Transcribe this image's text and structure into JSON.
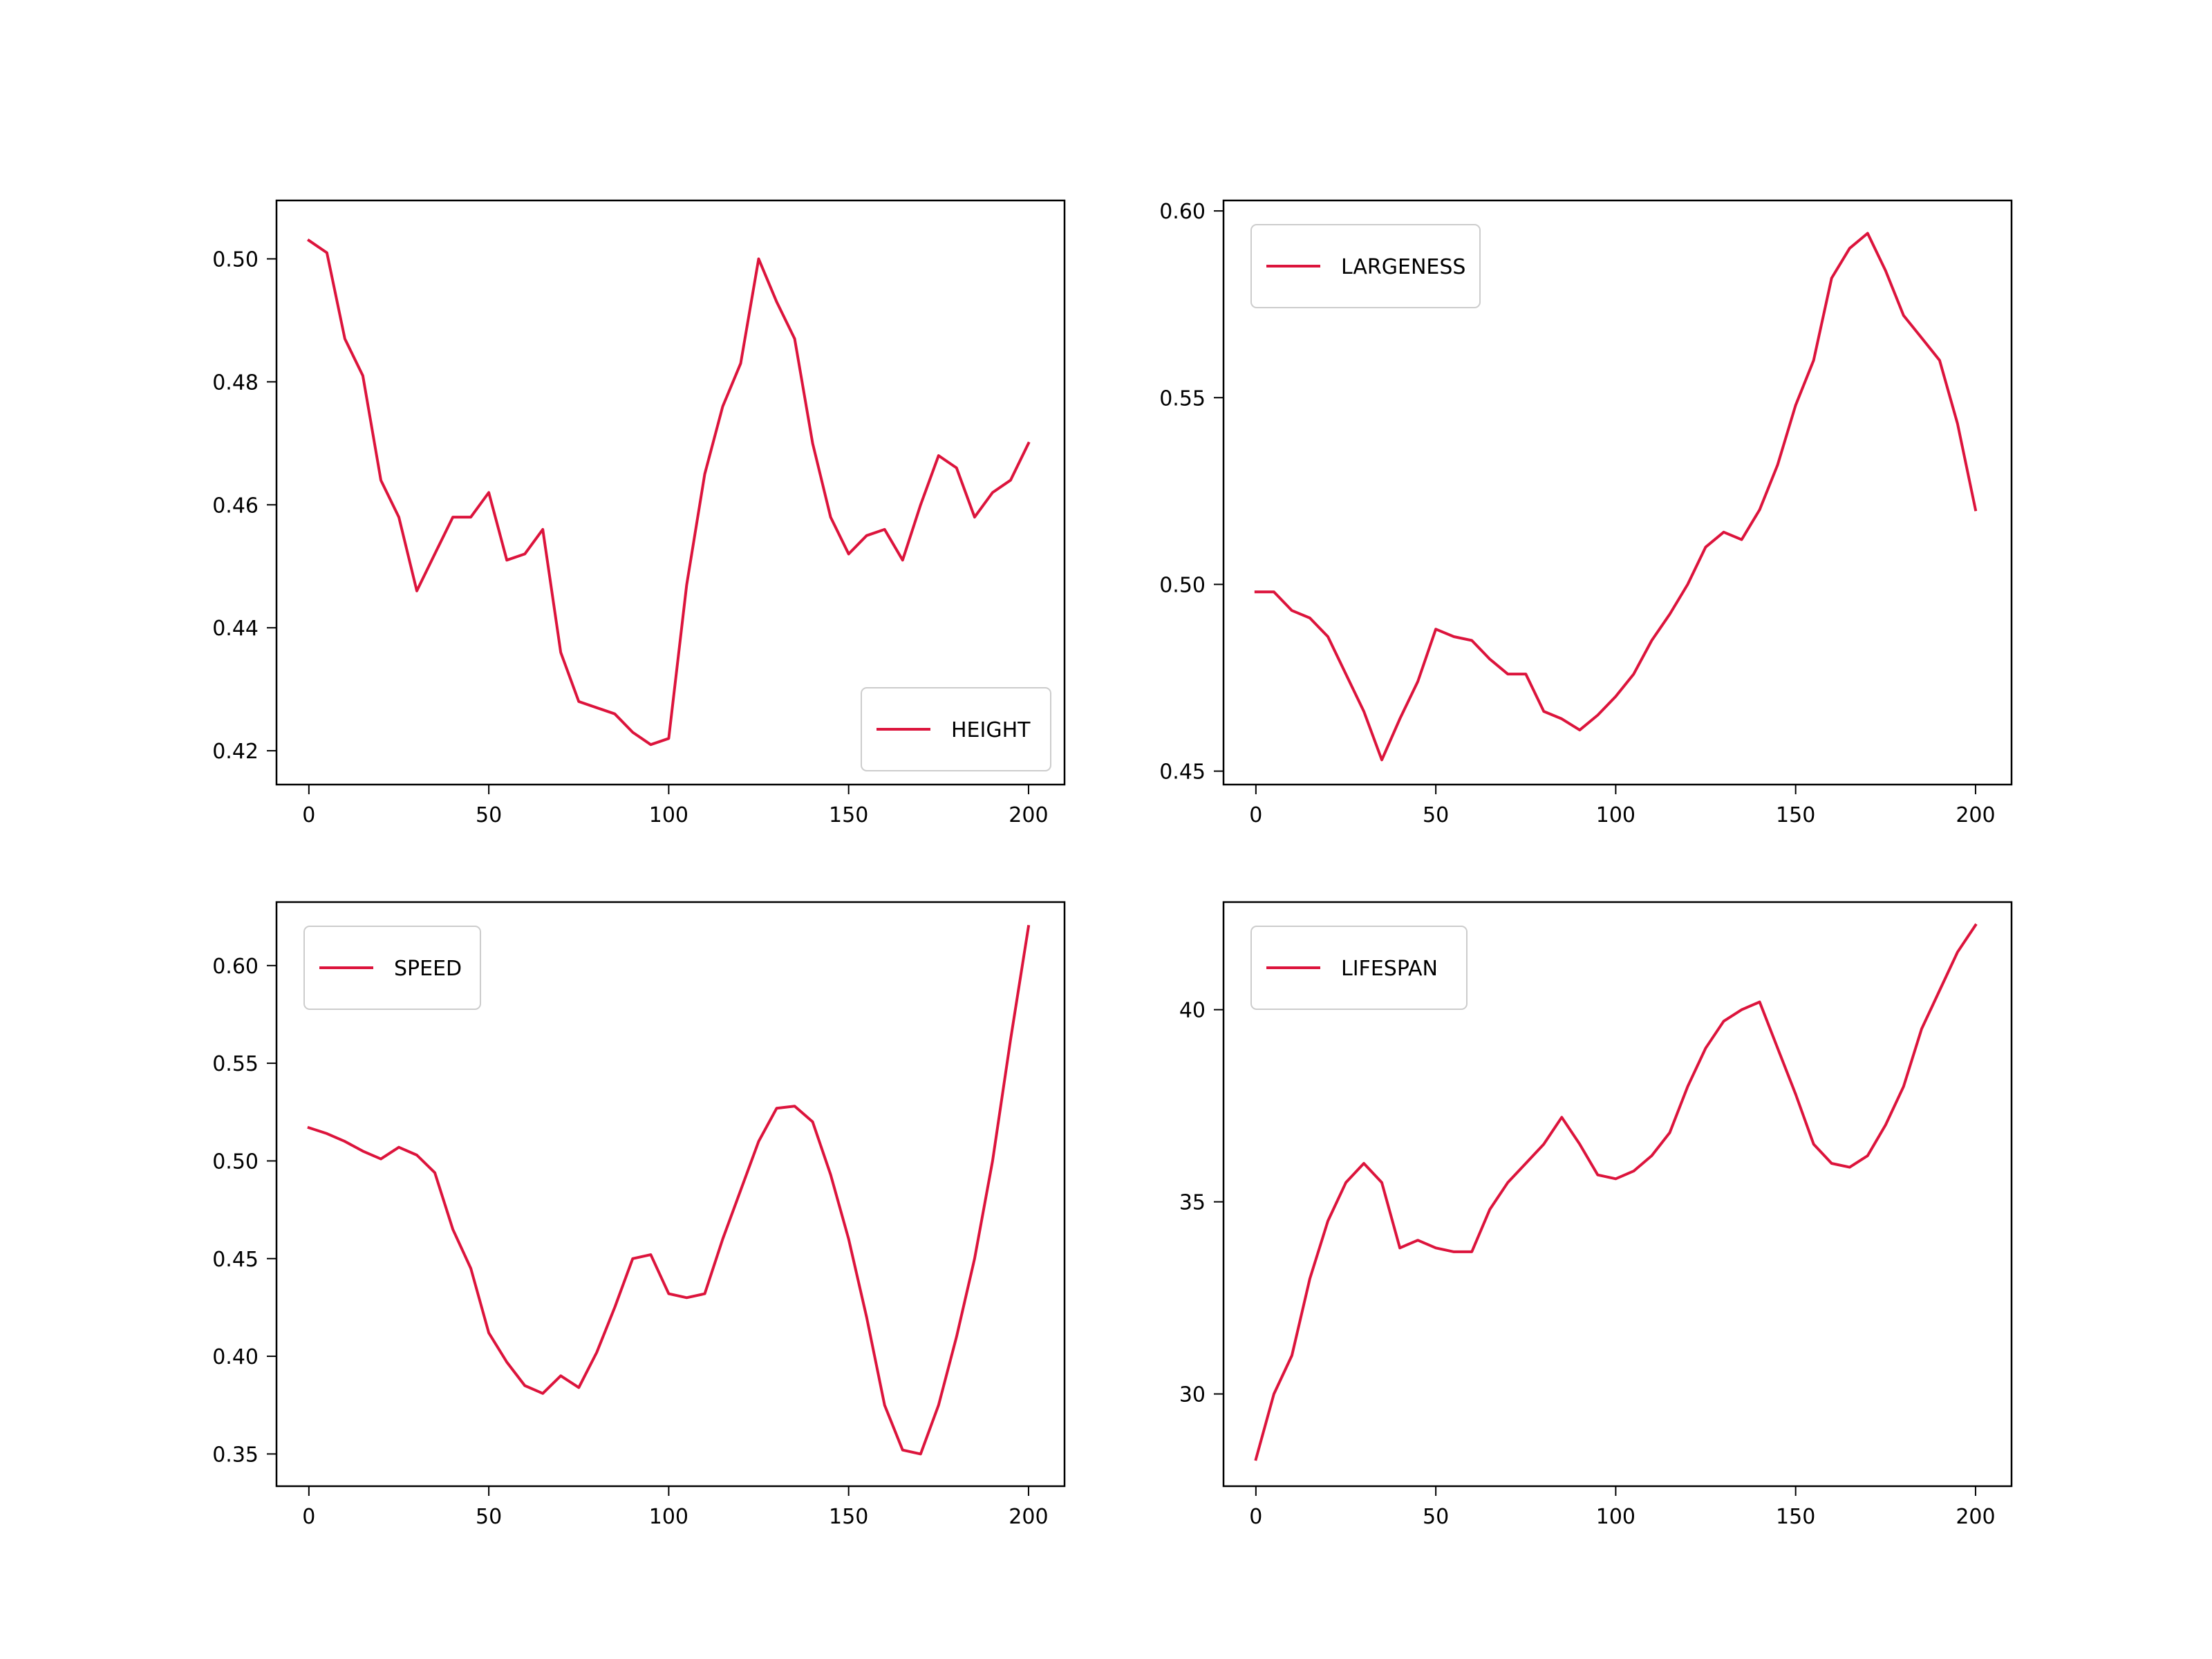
{
  "line_color": "#dc143c",
  "chart_data": [
    {
      "type": "line",
      "series": [
        {
          "name": "HEIGHT",
          "x": [
            0,
            5,
            10,
            15,
            20,
            25,
            30,
            35,
            40,
            45,
            50,
            55,
            60,
            65,
            70,
            75,
            80,
            85,
            90,
            95,
            100,
            105,
            110,
            115,
            120,
            125,
            130,
            135,
            140,
            145,
            150,
            155,
            160,
            165,
            170,
            175,
            180,
            185,
            190,
            195,
            200
          ],
          "y": [
            0.503,
            0.501,
            0.487,
            0.481,
            0.464,
            0.458,
            0.446,
            0.452,
            0.458,
            0.458,
            0.462,
            0.451,
            0.452,
            0.456,
            0.436,
            0.428,
            0.427,
            0.426,
            0.423,
            0.421,
            0.422,
            0.447,
            0.465,
            0.476,
            0.483,
            0.5,
            0.493,
            0.487,
            0.47,
            0.458,
            0.452,
            0.455,
            0.456,
            0.451,
            0.46,
            0.468,
            0.466,
            0.458,
            0.462,
            0.464,
            0.47
          ]
        }
      ],
      "xlim": [
        -9,
        210
      ],
      "ylim": [
        0.4145,
        0.5095
      ],
      "xticks": [
        0,
        50,
        100,
        150,
        200
      ],
      "yticks": [
        0.42,
        0.44,
        0.46,
        0.48,
        0.5
      ],
      "xtick_labels": [
        "0",
        "50",
        "100",
        "150",
        "200"
      ],
      "ytick_labels": [
        "0.42",
        "0.44",
        "0.46",
        "0.48",
        "0.50"
      ],
      "legend_position": "lower-right"
    },
    {
      "type": "line",
      "series": [
        {
          "name": "LARGENESS",
          "x": [
            0,
            5,
            10,
            15,
            20,
            25,
            30,
            35,
            40,
            45,
            50,
            55,
            60,
            65,
            70,
            75,
            80,
            85,
            90,
            95,
            100,
            105,
            110,
            115,
            120,
            125,
            130,
            135,
            140,
            145,
            150,
            155,
            160,
            165,
            170,
            175,
            180,
            185,
            190,
            195,
            200
          ],
          "y": [
            0.498,
            0.498,
            0.493,
            0.491,
            0.486,
            0.476,
            0.466,
            0.453,
            0.464,
            0.474,
            0.488,
            0.486,
            0.485,
            0.48,
            0.476,
            0.476,
            0.466,
            0.464,
            0.461,
            0.465,
            0.47,
            0.476,
            0.485,
            0.492,
            0.5,
            0.51,
            0.514,
            0.512,
            0.52,
            0.532,
            0.548,
            0.56,
            0.582,
            0.59,
            0.594,
            0.584,
            0.572,
            0.566,
            0.56,
            0.543,
            0.52
          ]
        }
      ],
      "xlim": [
        -9,
        210
      ],
      "ylim": [
        0.4464,
        0.6028
      ],
      "xticks": [
        0,
        50,
        100,
        150,
        200
      ],
      "yticks": [
        0.45,
        0.5,
        0.55,
        0.6
      ],
      "xtick_labels": [
        "0",
        "50",
        "100",
        "150",
        "200"
      ],
      "ytick_labels": [
        "0.45",
        "0.50",
        "0.55",
        "0.60"
      ],
      "legend_position": "upper-left"
    },
    {
      "type": "line",
      "series": [
        {
          "name": "SPEED",
          "x": [
            0,
            5,
            10,
            15,
            20,
            25,
            30,
            35,
            40,
            45,
            50,
            55,
            60,
            65,
            70,
            75,
            80,
            85,
            90,
            95,
            100,
            105,
            110,
            115,
            120,
            125,
            130,
            135,
            140,
            145,
            150,
            155,
            160,
            165,
            170,
            175,
            180,
            185,
            190,
            195,
            200
          ],
          "y": [
            0.517,
            0.514,
            0.51,
            0.505,
            0.501,
            0.507,
            0.503,
            0.494,
            0.465,
            0.445,
            0.412,
            0.397,
            0.385,
            0.381,
            0.39,
            0.384,
            0.402,
            0.425,
            0.45,
            0.452,
            0.432,
            0.43,
            0.432,
            0.46,
            0.485,
            0.51,
            0.527,
            0.528,
            0.52,
            0.493,
            0.46,
            0.42,
            0.375,
            0.352,
            0.35,
            0.375,
            0.41,
            0.45,
            0.5,
            0.562,
            0.62
          ]
        }
      ],
      "xlim": [
        -9,
        210
      ],
      "ylim": [
        0.3335,
        0.6325
      ],
      "xticks": [
        0,
        50,
        100,
        150,
        200
      ],
      "yticks": [
        0.35,
        0.4,
        0.45,
        0.5,
        0.55,
        0.6
      ],
      "xtick_labels": [
        "0",
        "50",
        "100",
        "150",
        "200"
      ],
      "ytick_labels": [
        "0.35",
        "0.40",
        "0.45",
        "0.50",
        "0.55",
        "0.60"
      ],
      "legend_position": "upper-left"
    },
    {
      "type": "line",
      "series": [
        {
          "name": "LIFESPAN",
          "x": [
            0,
            5,
            10,
            15,
            20,
            25,
            30,
            35,
            40,
            45,
            50,
            55,
            60,
            65,
            70,
            75,
            80,
            85,
            90,
            95,
            100,
            105,
            110,
            115,
            120,
            125,
            130,
            135,
            140,
            145,
            150,
            155,
            160,
            165,
            170,
            175,
            180,
            185,
            190,
            195,
            200
          ],
          "y": [
            28.3,
            30.0,
            31.0,
            33.0,
            34.5,
            35.5,
            36.0,
            35.5,
            33.8,
            34.0,
            33.8,
            33.7,
            33.7,
            34.8,
            35.5,
            36.0,
            36.5,
            37.2,
            36.5,
            35.7,
            35.6,
            35.8,
            36.2,
            36.8,
            38.0,
            39.0,
            39.7,
            40.0,
            40.2,
            39.0,
            37.8,
            36.5,
            36.0,
            35.9,
            36.2,
            37.0,
            38.0,
            39.5,
            40.5,
            41.5,
            42.2
          ]
        }
      ],
      "xlim": [
        -9,
        210
      ],
      "ylim": [
        27.6,
        42.8
      ],
      "xticks": [
        0,
        50,
        100,
        150,
        200
      ],
      "yticks": [
        30,
        35,
        40
      ],
      "xtick_labels": [
        "0",
        "50",
        "100",
        "150",
        "200"
      ],
      "ytick_labels": [
        "30",
        "35",
        "40"
      ],
      "legend_position": "upper-left"
    }
  ]
}
